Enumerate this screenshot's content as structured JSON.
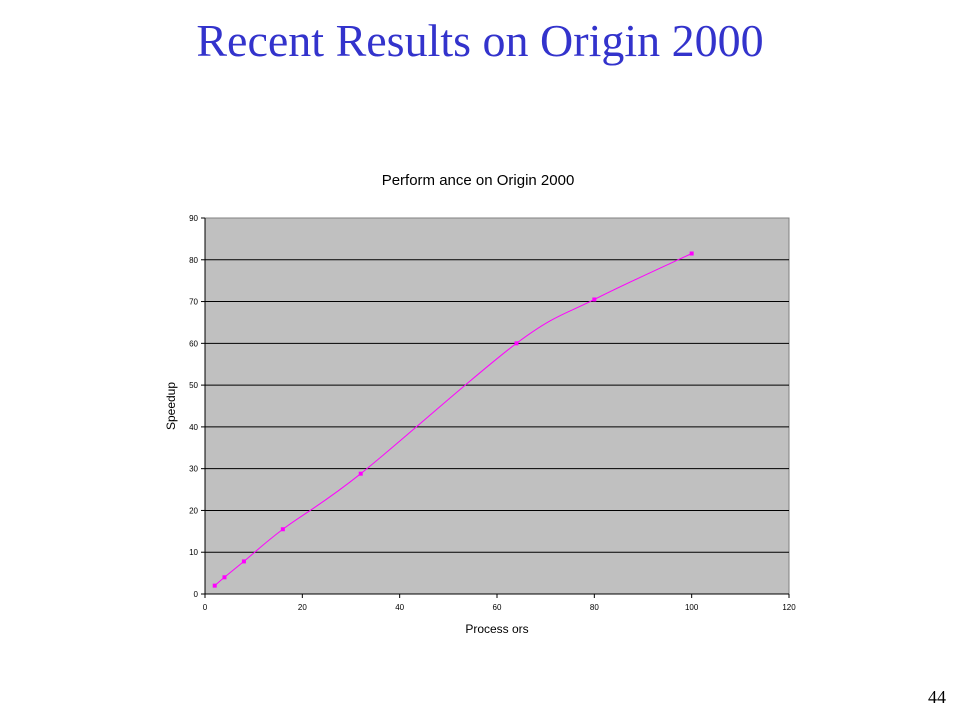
{
  "slide": {
    "title": "Recent Results on Origin 2000",
    "page_number": "44"
  },
  "chart_data": {
    "type": "scatter",
    "title": "Perform ance on Origin 2000",
    "xlabel": "Process ors",
    "ylabel": "Speedup",
    "xlim": [
      0,
      120
    ],
    "ylim": [
      0,
      90
    ],
    "x_ticks": [
      "0",
      "20",
      "40",
      "60",
      "80",
      "100",
      "120"
    ],
    "y_ticks": [
      "0",
      "10",
      "20",
      "30",
      "40",
      "50",
      "60",
      "70",
      "80",
      "90"
    ],
    "grid": "horizontal",
    "plot_background": "#c0c0c0",
    "series": [
      {
        "x": [
          2,
          4,
          8,
          16,
          32,
          64,
          80,
          100
        ],
        "y": [
          2,
          4,
          7.8,
          15.5,
          28.8,
          60,
          70.5,
          81.5
        ],
        "color": "#ff00ff",
        "smooth_line": true
      }
    ]
  }
}
